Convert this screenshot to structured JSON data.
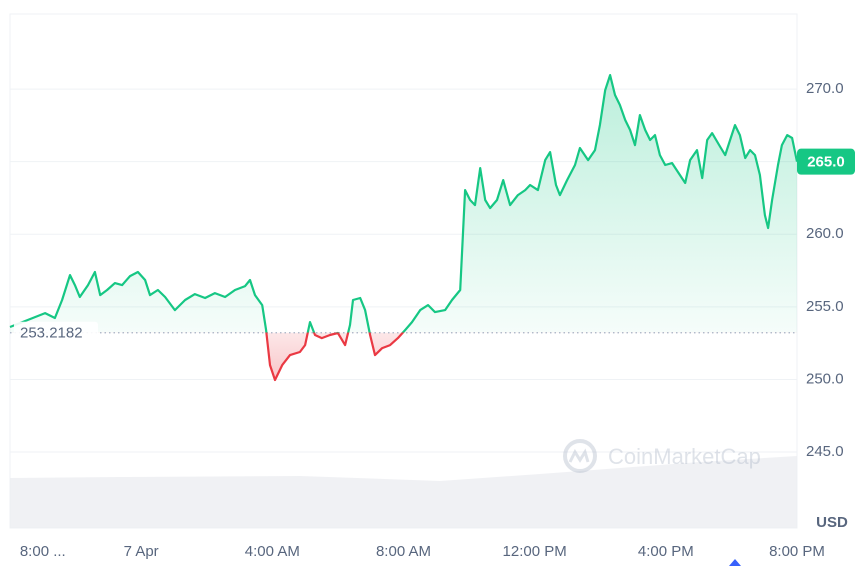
{
  "chart_data": {
    "type": "line",
    "x": [
      -4.0,
      -2.93,
      -2.63,
      -2.41,
      -2.17,
      -2.02,
      -1.87,
      -1.62,
      -1.41,
      -1.25,
      -1.04,
      -0.8,
      -0.58,
      -0.34,
      -0.1,
      0.12,
      0.27,
      0.51,
      0.73,
      1.03,
      1.34,
      1.64,
      1.95,
      2.25,
      2.56,
      2.86,
      3.17,
      3.32,
      3.47,
      3.69,
      3.81,
      3.93,
      4.08,
      4.3,
      4.54,
      4.84,
      5.0,
      5.15,
      5.3,
      5.51,
      5.76,
      6.0,
      6.22,
      6.37,
      6.46,
      6.68,
      6.83,
      6.98,
      7.13,
      7.35,
      7.59,
      7.83,
      8.05,
      8.26,
      8.51,
      8.75,
      8.96,
      9.27,
      9.48,
      9.73,
      9.88,
      10.03,
      10.18,
      10.34,
      10.49,
      10.64,
      10.85,
      11.04,
      11.25,
      11.49,
      11.71,
      11.86,
      12.1,
      12.32,
      12.47,
      12.65,
      12.77,
      12.99,
      13.23,
      13.38,
      13.63,
      13.84,
      13.99,
      14.15,
      14.3,
      14.45,
      14.6,
      14.76,
      14.91,
      15.06,
      15.21,
      15.37,
      15.52,
      15.67,
      15.82,
      15.98,
      16.19,
      16.37,
      16.59,
      16.74,
      16.95,
      17.11,
      17.26,
      17.41,
      17.66,
      17.81,
      17.96,
      18.11,
      18.26,
      18.42,
      18.57,
      18.72,
      18.87,
      19.02,
      19.12,
      19.24,
      19.42,
      19.54,
      19.7,
      19.85,
      20.0
    ],
    "values": [
      253.61,
      254.57,
      254.23,
      255.47,
      257.19,
      256.5,
      255.68,
      256.5,
      257.4,
      255.81,
      256.16,
      256.64,
      256.5,
      257.12,
      257.4,
      256.85,
      255.81,
      256.16,
      255.68,
      254.78,
      255.47,
      255.88,
      255.61,
      255.95,
      255.68,
      256.16,
      256.43,
      256.85,
      255.81,
      255.12,
      253.4,
      250.99,
      249.96,
      250.99,
      251.68,
      251.89,
      252.37,
      253.95,
      253.06,
      252.85,
      253.06,
      253.2,
      252.37,
      253.75,
      255.47,
      255.61,
      254.78,
      253.06,
      251.68,
      252.16,
      252.37,
      252.85,
      253.4,
      253.95,
      254.78,
      255.12,
      254.64,
      254.78,
      255.47,
      256.16,
      263.04,
      262.36,
      262.01,
      264.56,
      262.36,
      261.8,
      262.36,
      263.73,
      262.01,
      262.7,
      263.04,
      263.39,
      263.04,
      265.11,
      265.66,
      263.39,
      262.7,
      263.73,
      264.77,
      265.94,
      265.11,
      265.8,
      267.52,
      269.93,
      270.96,
      269.59,
      268.9,
      267.87,
      267.18,
      266.14,
      268.21,
      267.18,
      266.49,
      266.83,
      265.45,
      264.77,
      264.9,
      264.28,
      263.53,
      265.11,
      265.8,
      263.87,
      266.49,
      266.97,
      266.01,
      265.45,
      266.49,
      267.52,
      266.83,
      265.25,
      265.8,
      265.45,
      264.08,
      261.32,
      260.43,
      262.36,
      264.77,
      266.14,
      266.83,
      266.63,
      265
    ],
    "color_up": "#16c784",
    "color_down": "#ea3943",
    "baseline": 253.2182,
    "current_price": {
      "value": 265,
      "label": "265.0"
    },
    "xlim": [
      -4,
      20
    ],
    "ylim": [
      239.77,
      275.17
    ],
    "xticks": [
      {
        "value": -3,
        "label": "8:00 ..."
      },
      {
        "value": 0,
        "label": "7 Apr"
      },
      {
        "value": 4,
        "label": "4:00 AM"
      },
      {
        "value": 8,
        "label": "8:00 AM"
      },
      {
        "value": 12,
        "label": "12:00 PM"
      },
      {
        "value": 16,
        "label": "4:00 PM"
      },
      {
        "value": 20,
        "label": "8:00 PM"
      }
    ],
    "yticks": [
      {
        "value": 245,
        "label": "245.0"
      },
      {
        "value": 250,
        "label": "250.0"
      },
      {
        "value": 255,
        "label": "255.0"
      },
      {
        "value": 260,
        "label": "260.0"
      },
      {
        "value": 265,
        "label": "265.0"
      },
      {
        "value": 270,
        "label": "270.0"
      }
    ],
    "grid": true,
    "y_unit": "USD",
    "watermark": "CoinMarketCap"
  }
}
